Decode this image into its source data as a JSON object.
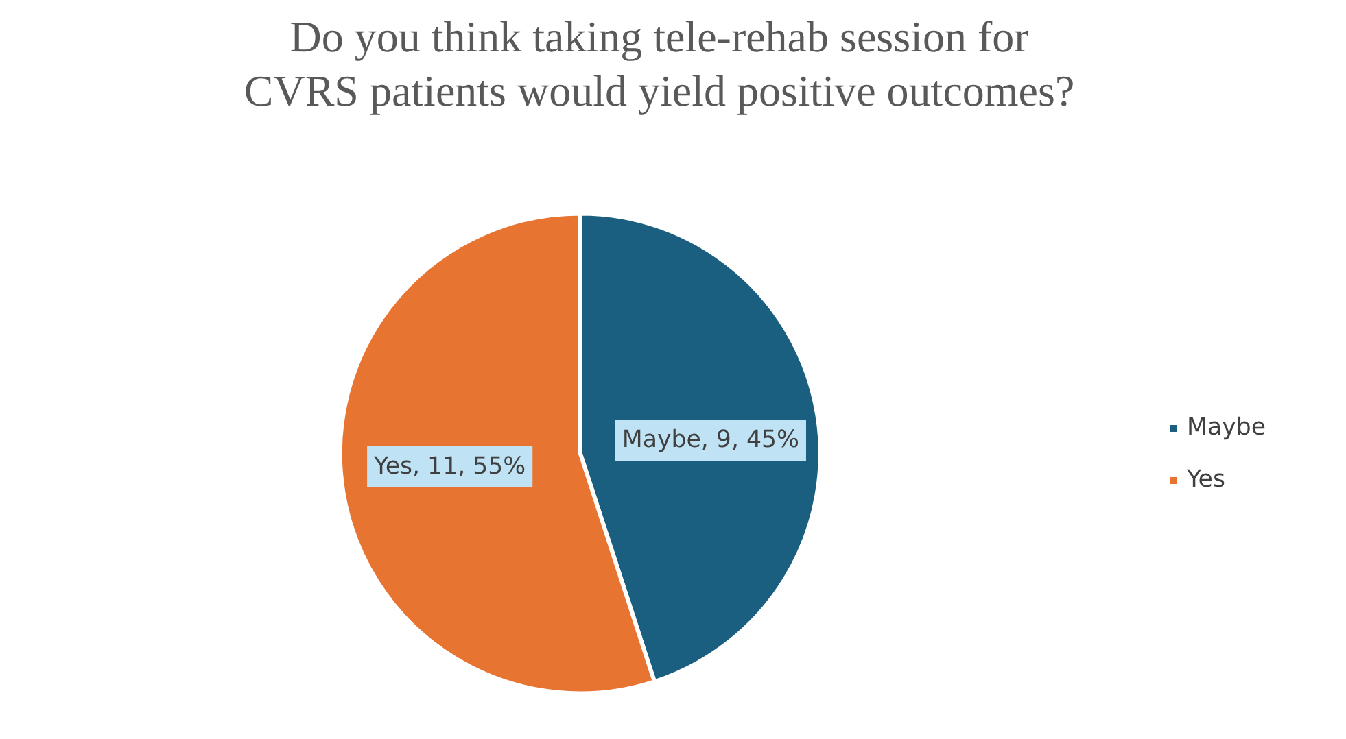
{
  "chart_data": {
    "type": "pie",
    "title": "Do you think taking tele-rehab session for CVRS patients would yield positive outcomes?",
    "categories": [
      "Maybe",
      "Yes"
    ],
    "values": [
      9,
      11
    ],
    "colors": [
      "#1a5f80",
      "#e87432"
    ],
    "value_labels": [
      "Maybe, 9, 45%",
      "Yes, 11, 55%"
    ],
    "legend": "right"
  }
}
